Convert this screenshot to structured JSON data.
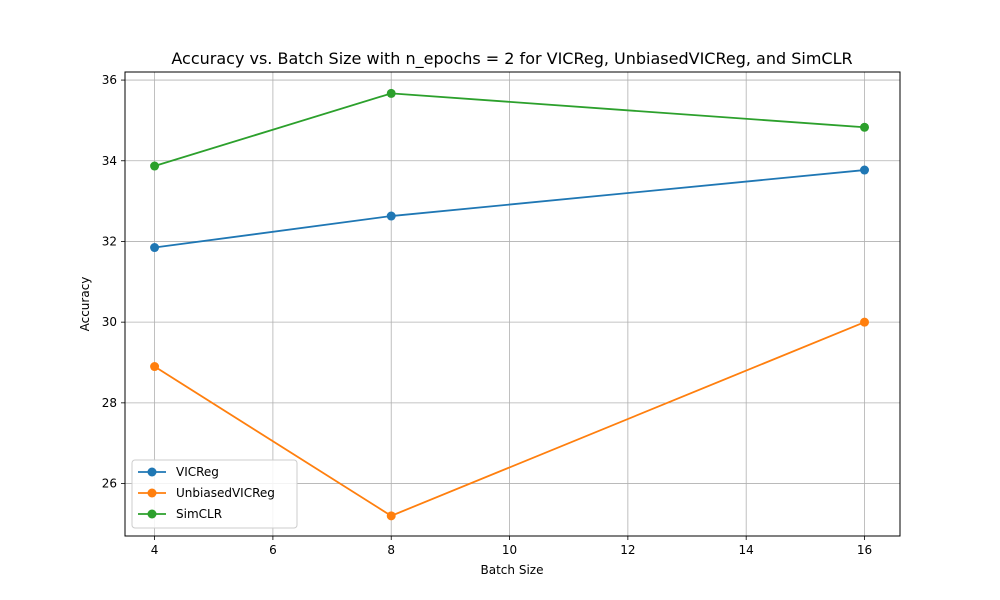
{
  "chart_data": {
    "type": "line",
    "title": "Accuracy vs. Batch Size with n_epochs = 2 for VICReg, UnbiasedVICReg, and SimCLR",
    "xlabel": "Batch Size",
    "ylabel": "Accuracy",
    "x": [
      4,
      8,
      16
    ],
    "xlim": [
      3.5,
      16.6
    ],
    "ylim": [
      24.7,
      36.2
    ],
    "xticks": [
      4,
      6,
      8,
      10,
      12,
      14,
      16
    ],
    "yticks": [
      26,
      28,
      30,
      32,
      34,
      36
    ],
    "grid": true,
    "legend_position": "lower-left",
    "series": [
      {
        "name": "VICReg",
        "values": [
          31.85,
          32.63,
          33.77
        ],
        "color": "#1f77b4"
      },
      {
        "name": "UnbiasedVICReg",
        "values": [
          28.9,
          25.2,
          30.0
        ],
        "color": "#ff7f0e"
      },
      {
        "name": "SimCLR",
        "values": [
          33.87,
          35.67,
          34.83
        ],
        "color": "#2ca02c"
      }
    ]
  }
}
